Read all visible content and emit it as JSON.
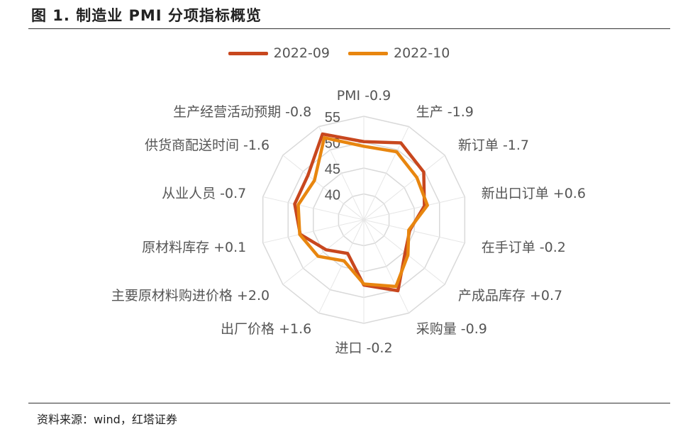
{
  "figure": {
    "title": "图 1. 制造业 PMI 分项指标概览",
    "source": "资料来源：wind，红塔证券"
  },
  "chart_data": {
    "type": "radar",
    "axis_ticks": [
      "40",
      "45",
      "50",
      "55"
    ],
    "r_range": [
      35,
      55
    ],
    "categories": [
      "PMI -0.9",
      "生产 -1.9",
      "新订单 -1.7",
      "新出口订单 +0.6",
      "在手订单 -0.2",
      "产成品库存 +0.7",
      "采购量 -0.9",
      "进口 -0.2",
      "出厂价格 +1.6",
      "主要原材料购进价格 +2.0",
      "原材料库存 +0.1",
      "从业人员 -0.7",
      "供货商配送时间 -1.6",
      "生产经营活动预期 -0.8"
    ],
    "series": [
      {
        "name": "2022-09",
        "color": "#c8471e",
        "values": [
          50.1,
          51.5,
          49.8,
          47.0,
          44.1,
          45.2,
          50.2,
          47.6,
          42.2,
          44.3,
          47.6,
          48.7,
          48.8,
          53.4
        ]
      },
      {
        "name": "2022-10",
        "color": "#e8860f",
        "values": [
          49.2,
          49.6,
          48.1,
          47.6,
          43.9,
          45.9,
          49.3,
          47.4,
          43.8,
          46.3,
          47.7,
          48.0,
          47.2,
          52.6
        ]
      }
    ]
  }
}
